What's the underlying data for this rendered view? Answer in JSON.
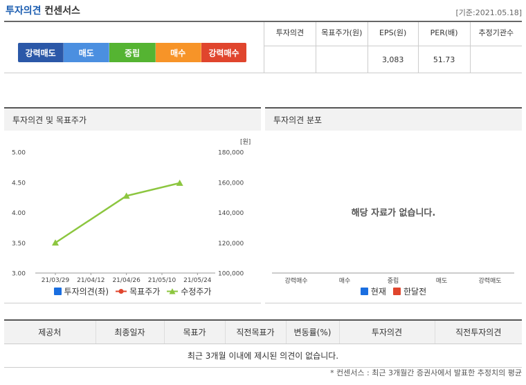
{
  "header": {
    "title_main": "투자의견",
    "title_sub": "컨센서스",
    "base_date": "[기준:2021.05.18]"
  },
  "scale": {
    "segments": [
      {
        "label": "강력매도",
        "color": "#2b58a8"
      },
      {
        "label": "매도",
        "color": "#4b8fe0"
      },
      {
        "label": "중립",
        "color": "#55b432"
      },
      {
        "label": "매수",
        "color": "#f79428"
      },
      {
        "label": "강력매수",
        "color": "#e0452d"
      }
    ]
  },
  "consensus_table": {
    "headers": [
      "투자의견",
      "목표주가(원)",
      "EPS(원)",
      "PER(배)",
      "추정기관수"
    ],
    "values": [
      "",
      "",
      "3,083",
      "51.73",
      ""
    ]
  },
  "chart_panel": {
    "title": "투자의견 및 목표주가",
    "legend": [
      {
        "label": "투자의견(좌)",
        "color": "#1a6ee0"
      },
      {
        "label": "목표주가",
        "color": "#e0452d"
      },
      {
        "label": "수정주가",
        "color": "#8cc63f"
      }
    ]
  },
  "chart_data": {
    "type": "line",
    "x_ticks": [
      "21/03/29",
      "21/04/12",
      "21/04/26",
      "21/05/10",
      "21/05/24"
    ],
    "y_left_ticks": [
      "5.00",
      "4.50",
      "4.00",
      "3.50",
      "3.00"
    ],
    "y_right_ticks": [
      "180,000",
      "160,000",
      "140,000",
      "120,000",
      "100,000"
    ],
    "y_right_unit": "[원]",
    "ylim_left": [
      3.0,
      5.0
    ],
    "ylim_right": [
      100000,
      180000
    ],
    "series": [
      {
        "name": "수정주가",
        "color": "#8cc63f",
        "points": [
          {
            "x": "21/03/29",
            "y": 120000
          },
          {
            "x": "21/04/26",
            "y": 151000
          },
          {
            "x": "21/05/17",
            "y": 159500
          }
        ]
      }
    ]
  },
  "distribution_panel": {
    "title": "투자의견 분포",
    "empty_message": "해당 자료가 없습니다.",
    "categories": [
      "강력매수",
      "매수",
      "중립",
      "매도",
      "강력매도"
    ],
    "legend": [
      {
        "label": "현재",
        "color": "#1a6ee0"
      },
      {
        "label": "한달전",
        "color": "#e0452d"
      }
    ]
  },
  "opinions_table": {
    "headers": [
      "제공처",
      "최종일자",
      "목표가",
      "직전목표가",
      "변동률(%)",
      "투자의견",
      "직전투자의견"
    ],
    "empty_message": "최근 3개월 이내에 제시된 의견이 없습니다."
  },
  "footnote": "* 컨센서스 : 최근 3개월간 증권사에서 발표한 추정치의 평균"
}
